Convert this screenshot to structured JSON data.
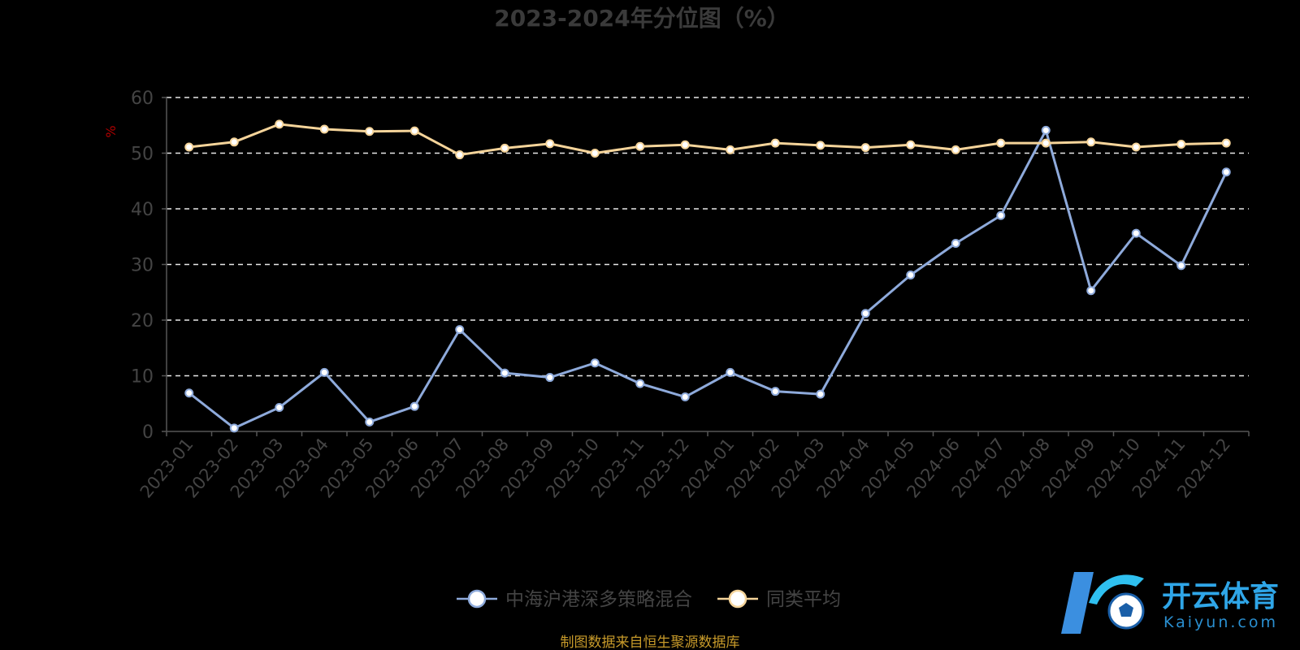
{
  "chart_data": {
    "type": "line",
    "title": "2023-2024年分位图（%）",
    "ylabel": "%",
    "xlabel": "",
    "ylim": [
      0,
      60
    ],
    "yticks": [
      0,
      10,
      20,
      30,
      40,
      50,
      60
    ],
    "grid": true,
    "legend_position": "bottom",
    "categories": [
      "2023-01",
      "2023-02",
      "2023-03",
      "2023-04",
      "2023-05",
      "2023-06",
      "2023-07",
      "2023-08",
      "2023-09",
      "2023-10",
      "2023-11",
      "2023-12",
      "2024-01",
      "2024-02",
      "2024-03",
      "2024-04",
      "2024-05",
      "2024-06",
      "2024-07",
      "2024-08",
      "2024-09",
      "2024-10",
      "2024-11",
      "2024-12"
    ],
    "series": [
      {
        "name": "中海沪港深多策略混合",
        "color": "#8eaadb",
        "values": [
          6.9,
          0.6,
          4.3,
          10.6,
          1.7,
          4.5,
          18.3,
          10.5,
          9.7,
          12.3,
          8.6,
          6.2,
          10.6,
          7.2,
          6.7,
          21.2,
          28.1,
          33.8,
          38.8,
          54.1,
          25.3,
          35.6,
          29.8,
          46.6
        ]
      },
      {
        "name": "同类平均",
        "color": "#f5d49a",
        "values": [
          51.1,
          52.0,
          55.2,
          54.3,
          53.9,
          54.0,
          49.7,
          50.9,
          51.7,
          50.0,
          51.2,
          51.5,
          50.6,
          51.8,
          51.4,
          51.0,
          51.5,
          50.6,
          51.8,
          51.8,
          52.0,
          51.1,
          51.6,
          51.8
        ]
      }
    ]
  },
  "footer": {
    "source": "制图数据来自恒生聚源数据库"
  },
  "logo": {
    "name": "开云体育",
    "domain": "Kaiyun.com"
  }
}
